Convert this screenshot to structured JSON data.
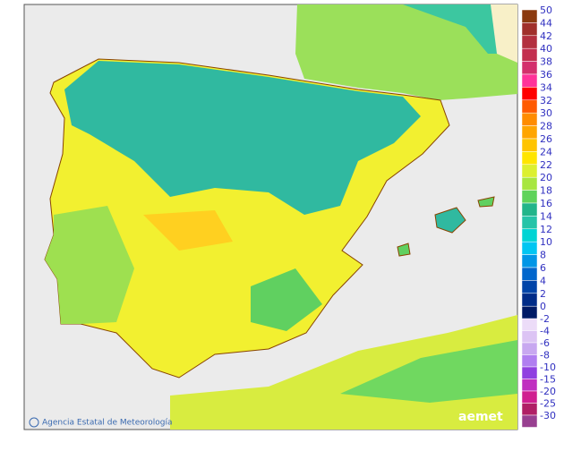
{
  "credit": "Agencia Estatal de Meteorología",
  "logo": "aemet",
  "legend": {
    "positive": [
      {
        "label": "50",
        "color": "#8b3a0f"
      },
      {
        "label": "44",
        "color": "#a0302a"
      },
      {
        "label": "42",
        "color": "#b3303e"
      },
      {
        "label": "40",
        "color": "#c3304f"
      },
      {
        "label": "38",
        "color": "#d3306c"
      },
      {
        "label": "36",
        "color": "#ff3399"
      },
      {
        "label": "34",
        "color": "#ff0000"
      },
      {
        "label": "32",
        "color": "#ff5a00"
      },
      {
        "label": "30",
        "color": "#ff8c00"
      },
      {
        "label": "28",
        "color": "#ffa500"
      },
      {
        "label": "26",
        "color": "#ffc400"
      },
      {
        "label": "24",
        "color": "#ffe500"
      },
      {
        "label": "22",
        "color": "#dcf030"
      },
      {
        "label": "20",
        "color": "#a8e640"
      },
      {
        "label": "18",
        "color": "#5fd35a"
      },
      {
        "label": "16",
        "color": "#22b58a"
      },
      {
        "label": "14",
        "color": "#26c4a8"
      },
      {
        "label": "12",
        "color": "#00d4d4"
      },
      {
        "label": "10",
        "color": "#00c6f2"
      },
      {
        "label": "8",
        "color": "#0096e6"
      },
      {
        "label": "6",
        "color": "#0066cc"
      },
      {
        "label": "4",
        "color": "#0044a8"
      },
      {
        "label": "2",
        "color": "#002c88"
      },
      {
        "label": "0",
        "color": "#001a66"
      }
    ],
    "negative": [
      {
        "label": "-2",
        "color": "#ecdcf8"
      },
      {
        "label": "-4",
        "color": "#dcc4f4"
      },
      {
        "label": "-6",
        "color": "#c8a8f0"
      },
      {
        "label": "-8",
        "color": "#b07ef0"
      },
      {
        "label": "-10",
        "color": "#9040e0"
      },
      {
        "label": "-15",
        "color": "#c030c0"
      },
      {
        "label": "-20",
        "color": "#d02090"
      },
      {
        "label": "-25",
        "color": "#b02065"
      },
      {
        "label": "-30",
        "color": "#984090"
      }
    ]
  }
}
